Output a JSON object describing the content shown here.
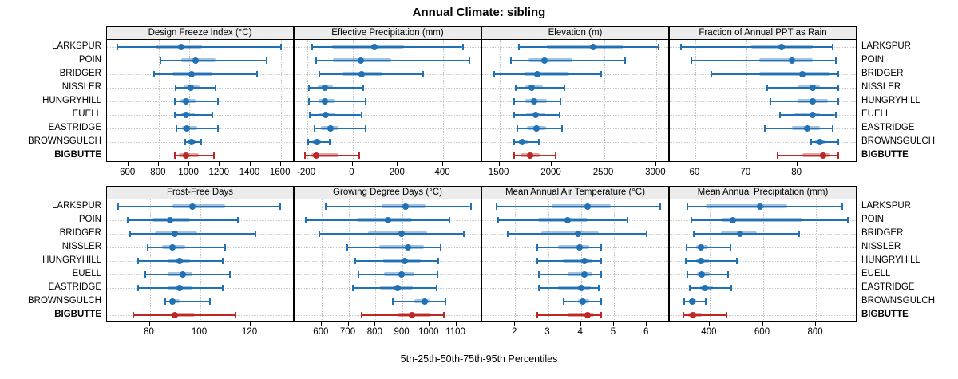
{
  "colors": {
    "series_blue": "#2171b5",
    "highlight_red": "#bd2724",
    "grid": "#c9c9c9",
    "strip_bg": "#ececec",
    "panel_border": "#000000"
  },
  "chart_data": {
    "type": "scatter",
    "subtype": "percentile-dot-interval",
    "title": "Annual Climate: sibling",
    "xlabel": "5th-25th-50th-75th-95th Percentiles",
    "legend_position": "none",
    "grid": "dotted",
    "percentiles_per_value": [
      5,
      25,
      50,
      75,
      95
    ],
    "categories": [
      "LARKSPUR",
      "POIN",
      "BRIDGER",
      "NISSLER",
      "HUNGRYHILL",
      "EUELL",
      "EASTRIDGE",
      "BROWNSGULCH",
      "BIGBUTTE"
    ],
    "highlight_category": "BIGBUTTE",
    "panel_rows": [
      [
        0,
        1,
        2,
        3
      ],
      [
        4,
        5,
        6,
        7
      ]
    ],
    "panels": [
      {
        "label": "Design Freeze Index (°C)",
        "xlim": [
          460,
          1680
        ],
        "ticks": [
          600,
          800,
          1000,
          1200,
          1400,
          1600
        ],
        "values": [
          [
            520,
            780,
            945,
            1085,
            1600
          ],
          [
            805,
            945,
            1040,
            1170,
            1505
          ],
          [
            765,
            890,
            1015,
            1150,
            1445
          ],
          [
            905,
            960,
            1010,
            1065,
            1170
          ],
          [
            900,
            940,
            980,
            1040,
            1185
          ],
          [
            900,
            945,
            980,
            1035,
            1150
          ],
          [
            910,
            950,
            985,
            1050,
            1185
          ],
          [
            970,
            995,
            1015,
            1040,
            1080
          ],
          [
            900,
            930,
            980,
            1060,
            1160
          ]
        ]
      },
      {
        "label": "Effective Precipitation (mm)",
        "xlim": [
          -255,
          565
        ],
        "ticks": [
          -200,
          0,
          200,
          400
        ],
        "values": [
          [
            -182,
            -90,
            98,
            228,
            486
          ],
          [
            -165,
            -85,
            36,
            170,
            515
          ],
          [
            -150,
            -45,
            40,
            132,
            310
          ],
          [
            -196,
            -152,
            -121,
            -85,
            46
          ],
          [
            -196,
            -150,
            -120,
            -79,
            57
          ],
          [
            -193,
            -148,
            -118,
            -78,
            39
          ],
          [
            -171,
            -139,
            -96,
            -61,
            57
          ],
          [
            -200,
            -179,
            -157,
            -138,
            -100
          ],
          [
            -214,
            -182,
            -160,
            -61,
            29
          ]
        ]
      },
      {
        "label": "Elevation (m)",
        "xlim": [
          1335,
          3115
        ],
        "ticks": [
          1500,
          2000,
          2500,
          3000
        ],
        "values": [
          [
            1680,
            1955,
            2400,
            2690,
            3025
          ],
          [
            1600,
            1775,
            1930,
            2195,
            2705
          ],
          [
            1445,
            1735,
            1865,
            2165,
            2470
          ],
          [
            1650,
            1750,
            1805,
            1915,
            2120
          ],
          [
            1630,
            1750,
            1835,
            1955,
            2085
          ],
          [
            1635,
            1755,
            1850,
            1940,
            2075
          ],
          [
            1665,
            1765,
            1855,
            1950,
            2100
          ],
          [
            1630,
            1690,
            1720,
            1780,
            1880
          ],
          [
            1635,
            1705,
            1795,
            1885,
            2040
          ]
        ]
      },
      {
        "label": "Fraction of Annual PPT as Rain",
        "xlim": [
          55,
          91.5
        ],
        "ticks": [
          60,
          70,
          80
        ],
        "values": [
          [
            57,
            71,
            77,
            83,
            87
          ],
          [
            59,
            72.5,
            79,
            83,
            87.5
          ],
          [
            63,
            72.5,
            81,
            86.5,
            88
          ],
          [
            74,
            80,
            83,
            84.5,
            88
          ],
          [
            74.5,
            80,
            83,
            86,
            88
          ],
          [
            76.5,
            79.5,
            83,
            84.5,
            87.5
          ],
          [
            73.5,
            79,
            82,
            84.5,
            87
          ],
          [
            82.5,
            83.5,
            84.5,
            85.5,
            88
          ],
          [
            76,
            81,
            85,
            86.5,
            88
          ]
        ]
      },
      {
        "label": "Frost-Free Days",
        "xlim": [
          63,
          137
        ],
        "ticks": [
          80,
          100,
          120
        ],
        "values": [
          [
            67,
            89,
            97,
            110,
            132
          ],
          [
            71,
            81,
            88,
            96,
            115
          ],
          [
            72,
            82,
            90,
            99,
            122
          ],
          [
            79,
            85,
            89,
            94,
            110
          ],
          [
            75,
            87,
            92,
            96,
            109
          ],
          [
            78,
            87,
            93,
            97,
            112
          ],
          [
            75,
            87,
            92,
            97,
            109
          ],
          [
            86,
            88,
            89,
            92,
            104
          ],
          [
            73,
            89,
            90,
            98,
            114
          ]
        ]
      },
      {
        "label": "Growing Degree Days (°C)",
        "xlim": [
          500,
          1190
        ],
        "ticks": [
          600,
          700,
          800,
          900,
          1000,
          1100
        ],
        "values": [
          [
            612,
            824,
            912,
            985,
            1153
          ],
          [
            538,
            732,
            847,
            935,
            1074
          ],
          [
            588,
            771,
            897,
            991,
            1129
          ],
          [
            691,
            815,
            921,
            979,
            1041
          ],
          [
            721,
            829,
            909,
            968,
            1032
          ],
          [
            735,
            832,
            897,
            944,
            1029
          ],
          [
            712,
            818,
            882,
            938,
            1026
          ],
          [
            862,
            944,
            982,
            1000,
            1059
          ],
          [
            747,
            882,
            935,
            1003,
            1053
          ]
        ]
      },
      {
        "label": "Mean Annual Air Temperature (°C)",
        "xlim": [
          1.0,
          6.65
        ],
        "ticks": [
          2,
          3,
          4,
          5,
          6
        ],
        "values": [
          [
            1.4,
            3.1,
            4.2,
            4.9,
            6.4
          ],
          [
            1.45,
            2.7,
            3.6,
            4.2,
            5.4
          ],
          [
            1.75,
            2.8,
            3.9,
            4.55,
            6.0
          ],
          [
            2.65,
            3.3,
            3.95,
            4.25,
            4.6
          ],
          [
            2.65,
            3.45,
            4.1,
            4.35,
            4.6
          ],
          [
            2.7,
            3.6,
            4.1,
            4.35,
            4.6
          ],
          [
            2.7,
            3.3,
            4.0,
            4.3,
            4.55
          ],
          [
            3.45,
            3.9,
            4.05,
            4.25,
            4.6
          ],
          [
            2.65,
            3.6,
            4.2,
            4.4,
            4.6
          ]
        ]
      },
      {
        "label": "Mean Annual Precipitation (mm)",
        "xlim": [
          250,
          950
        ],
        "ticks": [
          400,
          600,
          800
        ],
        "values": [
          [
            313,
            385,
            588,
            693,
            900
          ],
          [
            328,
            445,
            487,
            748,
            920
          ],
          [
            337,
            442,
            513,
            579,
            737
          ],
          [
            310,
            349,
            367,
            394,
            478
          ],
          [
            307,
            349,
            367,
            397,
            501
          ],
          [
            313,
            352,
            370,
            400,
            469
          ],
          [
            322,
            364,
            382,
            412,
            481
          ],
          [
            301,
            322,
            334,
            349,
            385
          ],
          [
            298,
            319,
            337,
            370,
            463
          ]
        ]
      }
    ]
  }
}
